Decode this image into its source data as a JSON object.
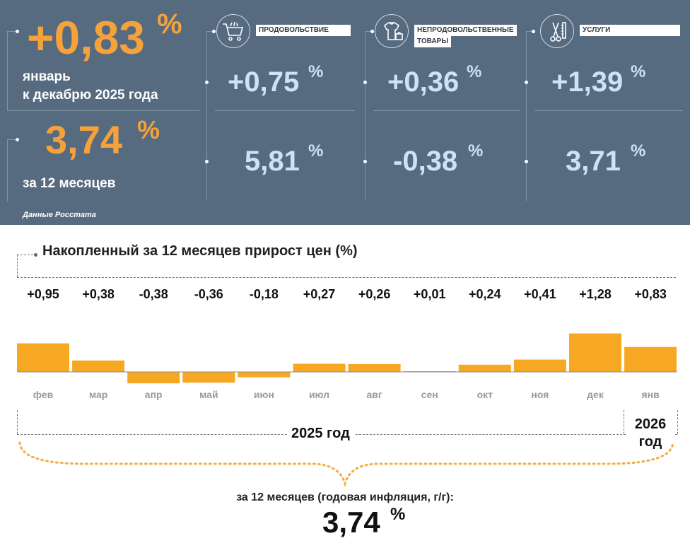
{
  "summary": {
    "monthly": {
      "value": "+0,83",
      "unit": "%",
      "line1": "январь",
      "line2": "к декабрю 2025 года"
    },
    "annual": {
      "value": "3,74",
      "unit": "%",
      "label": "за 12 месяцев"
    },
    "source": "Данные Росстата"
  },
  "categories": [
    {
      "icon": "shopping-cart-icon",
      "label": "ПРОДОВОЛЬСТВИЕ",
      "monthly": "+0,75",
      "annual": "5,81",
      "unit": "%"
    },
    {
      "icon": "clothes-icon",
      "label_line1": "НЕПРОДОВОЛЬСТВЕННЫЕ",
      "label_line2": "ТОВАРЫ",
      "monthly": "+0,36",
      "annual": "-0,38",
      "unit": "%"
    },
    {
      "icon": "scissors-comb-icon",
      "label": "УСЛУГИ",
      "monthly": "+1,39",
      "annual": "3,71",
      "unit": "%"
    }
  ],
  "chart": {
    "title": "Накопленный за 12 месяцев прирост цен (%)",
    "year_2025": "2025 год",
    "year_2026_line1": "2026",
    "year_2026_line2": "год",
    "footer_label": "за 12 месяцев (годовая инфляция, г/г):",
    "footer_value": "3,74",
    "footer_unit": "%"
  },
  "colors": {
    "panel": "#566a80",
    "accent_orange": "#f5a23a",
    "light_blue": "#cfe2f4",
    "bar": "#f7a823"
  },
  "chart_data": {
    "type": "bar",
    "categories": [
      "фев",
      "мар",
      "апр",
      "май",
      "июн",
      "июл",
      "авг",
      "сен",
      "окт",
      "ноя",
      "дек",
      "янв"
    ],
    "values": [
      0.95,
      0.38,
      -0.38,
      -0.36,
      -0.18,
      0.27,
      0.26,
      0.01,
      0.24,
      0.41,
      1.28,
      0.83
    ],
    "labels": [
      "+0,95",
      "+0,38",
      "-0,38",
      "-0,36",
      "-0,18",
      "+0,27",
      "+0,26",
      "+0,01",
      "+0,24",
      "+0,41",
      "+1,28",
      "+0,83"
    ],
    "title": "Накопленный за 12 месяцев прирост цен (%)"
  }
}
